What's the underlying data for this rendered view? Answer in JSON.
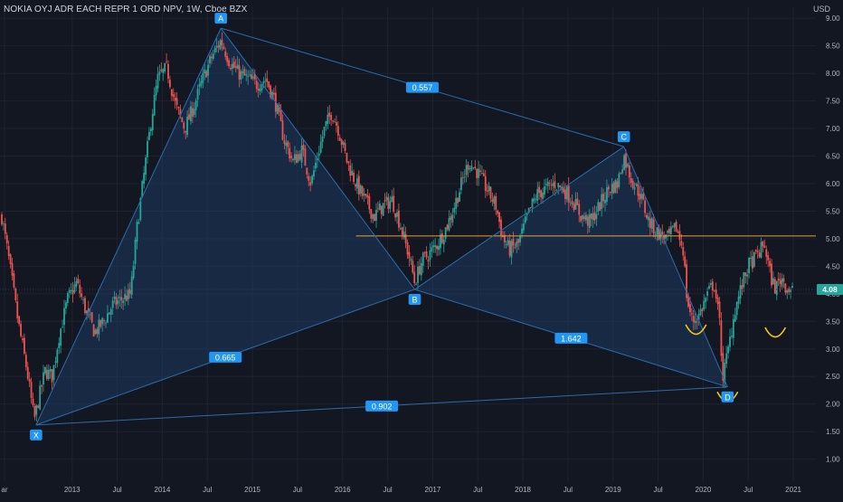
{
  "header": {
    "symbol_title": "NOKIA OYJ ADR EACH REPR 1 ORD NPV, 1W, Cboe BZX",
    "currency": "USD"
  },
  "colors": {
    "background": "#131722",
    "grid": "#1e2230",
    "up_candle": "#26a69a",
    "down_candle": "#ef5350",
    "pattern_line": "#2a6cad",
    "pattern_fill": "#1d3b5e",
    "label_bg": "#2196f3",
    "resistance_line": "#e8a33d",
    "support_line": "#2a3a55",
    "cup_marker": "#f5c518",
    "price_tag_bg": "#26a69a",
    "axis_text": "#b2b5be"
  },
  "chart_data": {
    "type": "candlestick",
    "ylim": [
      0.6,
      9.2
    ],
    "y_ticks": [
      "1.00",
      "1.50",
      "2.00",
      "2.50",
      "3.00",
      "3.50",
      "4.00",
      "4.50",
      "5.00",
      "5.50",
      "6.00",
      "6.50",
      "7.00",
      "7.50",
      "8.00",
      "8.50",
      "9.00"
    ],
    "x_ticks": [
      {
        "label": "ar",
        "t": 2012.25
      },
      {
        "label": "2013",
        "t": 2013.0
      },
      {
        "label": "Jul",
        "t": 2013.5
      },
      {
        "label": "2014",
        "t": 2014.0
      },
      {
        "label": "Jul",
        "t": 2014.5
      },
      {
        "label": "2015",
        "t": 2015.0
      },
      {
        "label": "Jul",
        "t": 2015.5
      },
      {
        "label": "2016",
        "t": 2016.0
      },
      {
        "label": "Jul",
        "t": 2016.5
      },
      {
        "label": "2017",
        "t": 2017.0
      },
      {
        "label": "Jul",
        "t": 2017.5
      },
      {
        "label": "2018",
        "t": 2018.0
      },
      {
        "label": "Jul",
        "t": 2018.5
      },
      {
        "label": "2019",
        "t": 2019.0
      },
      {
        "label": "Jul",
        "t": 2019.5
      },
      {
        "label": "2020",
        "t": 2020.0
      },
      {
        "label": "Jul",
        "t": 2020.5
      },
      {
        "label": "2021",
        "t": 2021.0
      }
    ],
    "price_path": [
      [
        2012.22,
        5.4
      ],
      [
        2012.3,
        4.6
      ],
      [
        2012.4,
        3.5
      ],
      [
        2012.5,
        2.6
      ],
      [
        2012.58,
        1.7
      ],
      [
        2012.63,
        2.1
      ],
      [
        2012.7,
        2.6
      ],
      [
        2012.78,
        2.5
      ],
      [
        2012.85,
        3.2
      ],
      [
        2012.95,
        3.9
      ],
      [
        2013.05,
        4.2
      ],
      [
        2013.15,
        3.7
      ],
      [
        2013.25,
        3.3
      ],
      [
        2013.35,
        3.5
      ],
      [
        2013.45,
        3.8
      ],
      [
        2013.55,
        3.9
      ],
      [
        2013.65,
        4.0
      ],
      [
        2013.72,
        5.2
      ],
      [
        2013.8,
        6.2
      ],
      [
        2013.88,
        7.2
      ],
      [
        2013.95,
        7.9
      ],
      [
        2014.05,
        8.1
      ],
      [
        2014.15,
        7.4
      ],
      [
        2014.25,
        7.0
      ],
      [
        2014.35,
        7.4
      ],
      [
        2014.45,
        7.9
      ],
      [
        2014.55,
        8.3
      ],
      [
        2014.65,
        8.6
      ],
      [
        2014.75,
        8.2
      ],
      [
        2014.85,
        8.0
      ],
      [
        2014.95,
        7.9
      ],
      [
        2015.05,
        7.8
      ],
      [
        2015.15,
        7.9
      ],
      [
        2015.25,
        7.5
      ],
      [
        2015.35,
        6.8
      ],
      [
        2015.45,
        6.4
      ],
      [
        2015.55,
        6.6
      ],
      [
        2015.65,
        6.0
      ],
      [
        2015.72,
        6.5
      ],
      [
        2015.8,
        7.0
      ],
      [
        2015.88,
        7.3
      ],
      [
        2015.95,
        7.0
      ],
      [
        2016.05,
        6.4
      ],
      [
        2016.15,
        6.0
      ],
      [
        2016.25,
        5.7
      ],
      [
        2016.35,
        5.4
      ],
      [
        2016.45,
        5.6
      ],
      [
        2016.55,
        5.7
      ],
      [
        2016.65,
        5.2
      ],
      [
        2016.75,
        4.6
      ],
      [
        2016.8,
        4.2
      ],
      [
        2016.88,
        4.6
      ],
      [
        2016.95,
        4.7
      ],
      [
        2017.05,
        4.9
      ],
      [
        2017.15,
        5.2
      ],
      [
        2017.22,
        5.5
      ],
      [
        2017.3,
        5.9
      ],
      [
        2017.4,
        6.4
      ],
      [
        2017.5,
        6.2
      ],
      [
        2017.6,
        5.9
      ],
      [
        2017.7,
        5.6
      ],
      [
        2017.78,
        5.0
      ],
      [
        2017.85,
        4.8
      ],
      [
        2017.95,
        4.9
      ],
      [
        2018.05,
        5.4
      ],
      [
        2018.15,
        5.8
      ],
      [
        2018.25,
        5.9
      ],
      [
        2018.35,
        6.0
      ],
      [
        2018.45,
        5.9
      ],
      [
        2018.55,
        5.7
      ],
      [
        2018.65,
        5.4
      ],
      [
        2018.75,
        5.3
      ],
      [
        2018.85,
        5.6
      ],
      [
        2018.95,
        5.9
      ],
      [
        2019.05,
        6.0
      ],
      [
        2019.12,
        6.5
      ],
      [
        2019.2,
        6.1
      ],
      [
        2019.3,
        5.8
      ],
      [
        2019.4,
        5.3
      ],
      [
        2019.5,
        5.1
      ],
      [
        2019.6,
        5.0
      ],
      [
        2019.7,
        5.2
      ],
      [
        2019.78,
        4.8
      ],
      [
        2019.82,
        3.9
      ],
      [
        2019.88,
        3.5
      ],
      [
        2019.95,
        3.6
      ],
      [
        2020.05,
        4.0
      ],
      [
        2020.12,
        4.2
      ],
      [
        2020.18,
        3.5
      ],
      [
        2020.22,
        2.5
      ],
      [
        2020.28,
        3.0
      ],
      [
        2020.35,
        3.7
      ],
      [
        2020.42,
        4.1
      ],
      [
        2020.5,
        4.5
      ],
      [
        2020.6,
        4.7
      ],
      [
        2020.68,
        4.9
      ],
      [
        2020.75,
        4.3
      ],
      [
        2020.8,
        4.1
      ],
      [
        2020.87,
        4.3
      ],
      [
        2020.93,
        4.1
      ],
      [
        2021.0,
        4.08
      ]
    ],
    "pattern": {
      "points": [
        {
          "name": "X",
          "t": 2012.6,
          "p": 1.62
        },
        {
          "name": "A",
          "t": 2014.65,
          "p": 8.82
        },
        {
          "name": "B",
          "t": 2016.8,
          "p": 4.08
        },
        {
          "name": "C",
          "t": 2019.12,
          "p": 6.67
        },
        {
          "name": "D",
          "t": 2020.27,
          "p": 2.31
        }
      ],
      "ratios": [
        {
          "label": "0.557",
          "from": "A",
          "to": "C"
        },
        {
          "label": "0.665",
          "from": "X",
          "to": "B"
        },
        {
          "label": "1.642",
          "from": "B",
          "to": "D"
        },
        {
          "label": "0.902",
          "from": "X",
          "to": "D"
        }
      ]
    },
    "resistance_level": 5.05,
    "support_level": 4.08,
    "last_price": "4.08",
    "cup_markers": [
      {
        "t": 2019.92,
        "p": 3.3
      },
      {
        "t": 2020.27,
        "p": 2.08
      },
      {
        "t": 2020.8,
        "p": 3.25
      }
    ]
  }
}
